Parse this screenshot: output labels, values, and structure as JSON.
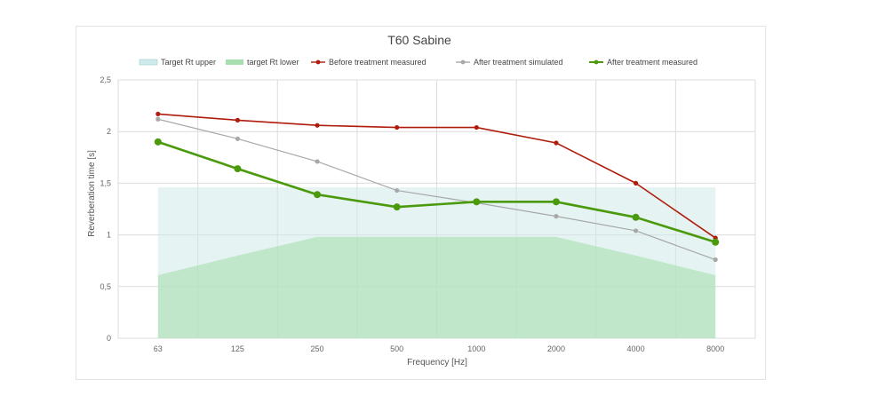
{
  "chart_data": {
    "type": "line",
    "title": "T60 Sabine",
    "xlabel": "Frequency [Hz]",
    "ylabel": "Reverberation time [s]",
    "categories": [
      "63",
      "125",
      "250",
      "500",
      "1000",
      "2000",
      "4000",
      "8000"
    ],
    "yticks": [
      "0",
      "0,5",
      "1",
      "1,5",
      "2",
      "2,5"
    ],
    "ylim": [
      0,
      2.5
    ],
    "grid": true,
    "legend_position": "top",
    "areas": [
      {
        "name": "Target Rt upper",
        "color": "#cfeaea",
        "values": [
          1.46,
          1.46,
          1.46,
          1.46,
          1.46,
          1.46,
          1.46,
          1.46
        ]
      },
      {
        "name": "target Rt lower",
        "color": "#a8dfb1",
        "values": [
          0.61,
          0.8,
          0.98,
          0.98,
          0.98,
          0.98,
          0.8,
          0.61
        ]
      }
    ],
    "series": [
      {
        "name": "Before treatment measured",
        "color": "#b01c0c",
        "values": [
          2.17,
          2.11,
          2.06,
          2.04,
          2.04,
          1.89,
          1.5,
          0.97
        ]
      },
      {
        "name": "After treatment simulated",
        "color": "#a8a8a8",
        "values": [
          2.12,
          1.93,
          1.71,
          1.43,
          1.31,
          1.18,
          1.04,
          0.76
        ]
      },
      {
        "name": "After treatment measured",
        "color": "#4a9a0c",
        "values": [
          1.9,
          1.64,
          1.39,
          1.27,
          1.32,
          1.32,
          1.17,
          0.93
        ]
      }
    ]
  }
}
